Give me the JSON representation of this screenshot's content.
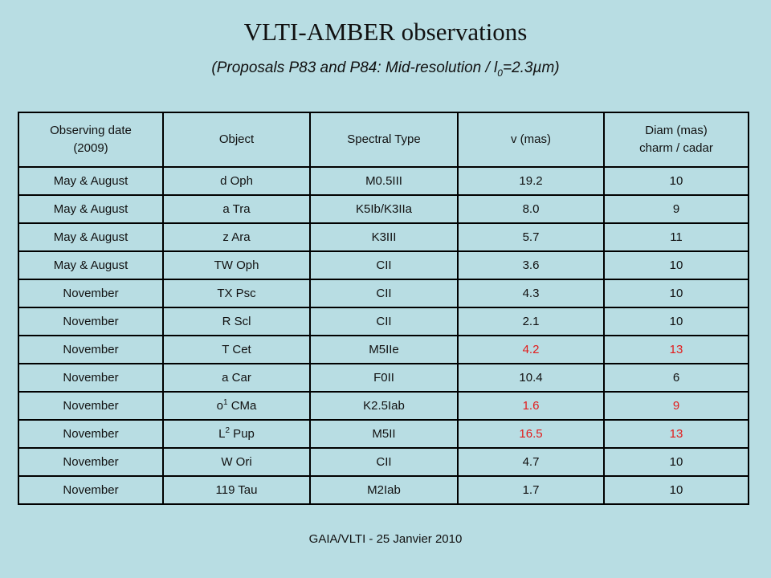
{
  "title": "VLTI-AMBER observations",
  "subtitle": {
    "prefix": "(Proposals P83 and P84: Mid-resolution / l",
    "sub": "0",
    "suffix": "=2.3µm)"
  },
  "table": {
    "headers": {
      "date_line1": "Observing date",
      "date_line2": "(2009)",
      "object": "Object",
      "spectral": "Spectral Type",
      "v": "v (mas)",
      "diam_line1": "Diam (mas)",
      "diam_line2": "charm / cadar"
    },
    "rows": [
      {
        "date": "May & August",
        "object": "d Oph",
        "object_sup": "",
        "object_rest": "",
        "spectral": "M0.5III",
        "v": "19.2",
        "diam": "10",
        "highlight": false
      },
      {
        "date": "May & August",
        "object": "a Tra",
        "object_sup": "",
        "object_rest": "",
        "spectral": "K5Ib/K3IIa",
        "v": "8.0",
        "diam": "9",
        "highlight": false
      },
      {
        "date": "May & August",
        "object": "z Ara",
        "object_sup": "",
        "object_rest": "",
        "spectral": "K3III",
        "v": "5.7",
        "diam": "11",
        "highlight": false
      },
      {
        "date": "May & August",
        "object": "TW Oph",
        "object_sup": "",
        "object_rest": "",
        "spectral": "CII",
        "v": "3.6",
        "diam": "10",
        "highlight": false
      },
      {
        "date": "November",
        "object": "TX Psc",
        "object_sup": "",
        "object_rest": "",
        "spectral": "CII",
        "v": "4.3",
        "diam": "10",
        "highlight": false
      },
      {
        "date": "November",
        "object": "R Scl",
        "object_sup": "",
        "object_rest": "",
        "spectral": "CII",
        "v": "2.1",
        "diam": "10",
        "highlight": false
      },
      {
        "date": "November",
        "object": "T Cet",
        "object_sup": "",
        "object_rest": "",
        "spectral": "M5IIe",
        "v": "4.2",
        "diam": "13",
        "highlight": true
      },
      {
        "date": "November",
        "object": "a Car",
        "object_sup": "",
        "object_rest": "",
        "spectral": "F0II",
        "v": "10.4",
        "diam": "6",
        "highlight": false
      },
      {
        "date": "November",
        "object": "o",
        "object_sup": "1",
        "object_rest": " CMa",
        "spectral": "K2.5Iab",
        "v": "1.6",
        "diam": "9",
        "highlight": true
      },
      {
        "date": "November",
        "object": "L",
        "object_sup": "2",
        "object_rest": " Pup",
        "spectral": "M5II",
        "v": "16.5",
        "diam": "13",
        "highlight": true
      },
      {
        "date": "November",
        "object": "W Ori",
        "object_sup": "",
        "object_rest": "",
        "spectral": "CII",
        "v": "4.7",
        "diam": "10",
        "highlight": false
      },
      {
        "date": "November",
        "object": "119 Tau",
        "object_sup": "",
        "object_rest": "",
        "spectral": "M2Iab",
        "v": "1.7",
        "diam": "10",
        "highlight": false
      }
    ]
  },
  "footer": "GAIA/VLTI - 25 Janvier 2010",
  "colors": {
    "background": "#b8dde3",
    "highlight": "#e31b1b"
  }
}
